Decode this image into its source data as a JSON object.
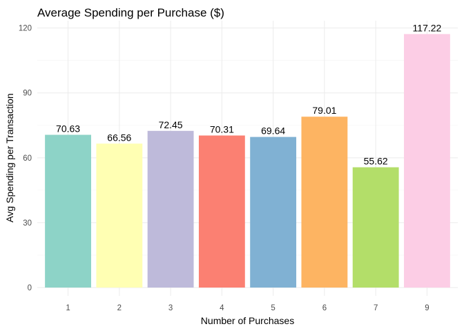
{
  "chart_data": {
    "type": "bar",
    "title": "Average Spending per Purchase ($)",
    "xlabel": "Number of Purchases",
    "ylabel": "Avg Spending per Transaction",
    "categories": [
      "1",
      "2",
      "3",
      "4",
      "5",
      "6",
      "7",
      "9"
    ],
    "values": [
      70.63,
      66.56,
      72.45,
      70.31,
      69.64,
      79.01,
      55.62,
      117.22
    ],
    "value_labels": [
      "70.63",
      "66.56",
      "72.45",
      "70.31",
      "69.64",
      "79.01",
      "55.62",
      "117.22"
    ],
    "colors": [
      "#8DD3C7",
      "#FFFFB3",
      "#BEBADA",
      "#FB8072",
      "#80B1D3",
      "#FDB462",
      "#B3DE69",
      "#FCCDE5"
    ],
    "yticks": [
      0,
      30,
      60,
      90,
      120
    ],
    "ytick_labels": [
      "0",
      "30",
      "60",
      "90",
      "120"
    ],
    "ylim": [
      0,
      123.08
    ],
    "grid": true,
    "legend": "none"
  }
}
